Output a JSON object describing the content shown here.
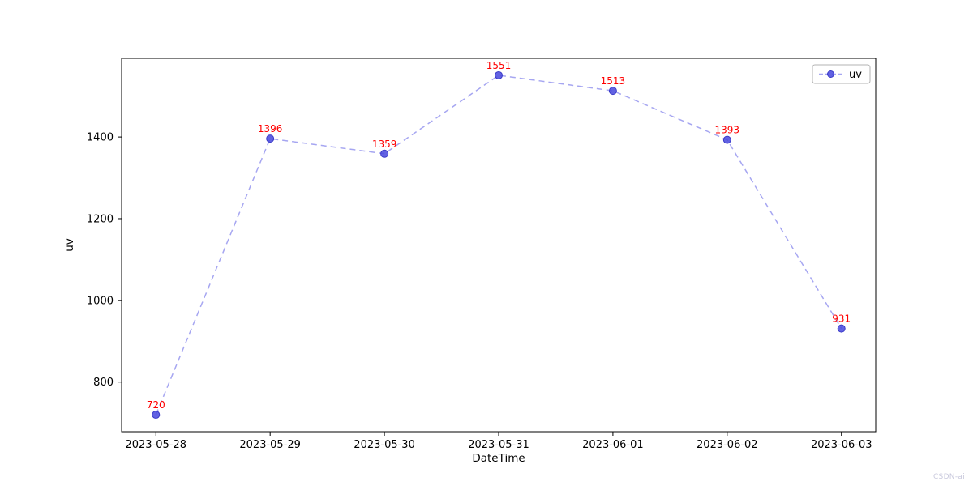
{
  "watermark": {
    "text": "CSDN-ai"
  },
  "chart_data": {
    "type": "line",
    "title": "",
    "xlabel": "DateTime",
    "ylabel": "uv",
    "categories": [
      "2023-05-28",
      "2023-05-29",
      "2023-05-30",
      "2023-05-31",
      "2023-06-01",
      "2023-06-02",
      "2023-06-03"
    ],
    "series": [
      {
        "name": "uv",
        "values": [
          720,
          1396,
          1359,
          1551,
          1513,
          1393,
          931
        ]
      }
    ],
    "yticks": [
      800,
      1000,
      1200,
      1400
    ],
    "ylim": [
      678.45,
      1592.55
    ],
    "xlim": [
      -0.3,
      6.3
    ],
    "grid": false,
    "legend_position": "upper right",
    "line_style": "dashed",
    "line_color": "#6b6be8",
    "marker_color": "#4646dd",
    "marker_edge_color": "#3a3ac8",
    "label_color": "#ff0000",
    "axes_color": "#000000",
    "legend_border_color": "#b3b3b3"
  }
}
